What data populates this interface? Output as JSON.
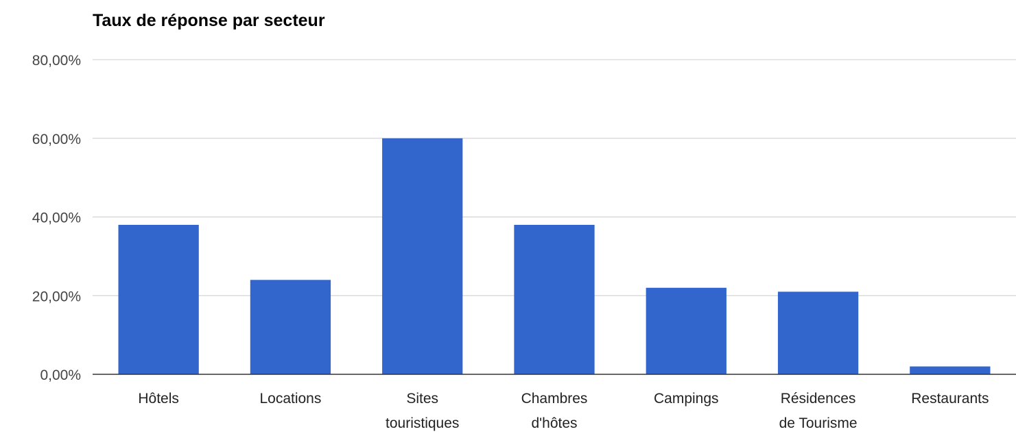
{
  "chart_data": {
    "type": "bar",
    "title": "Taux de réponse par secteur",
    "xlabel": "",
    "ylabel": "",
    "ylim": [
      0,
      80
    ],
    "yticks": [
      0,
      20,
      40,
      60,
      80
    ],
    "ytick_labels": [
      "0,00%",
      "20,00%",
      "40,00%",
      "60,00%",
      "80,00%"
    ],
    "categories": [
      "Hôtels",
      "Locations",
      "Sites touristiques",
      "Chambres d'hôtes",
      "Campings",
      "Résidences de Tourisme",
      "Restaurants"
    ],
    "category_label_lines": [
      [
        "Hôtels"
      ],
      [
        "Locations"
      ],
      [
        "Sites",
        "touristiques"
      ],
      [
        "Chambres",
        "d'hôtes"
      ],
      [
        "Campings"
      ],
      [
        "Résidences",
        "de Tourisme"
      ],
      [
        "Restaurants"
      ]
    ],
    "values": [
      38,
      24,
      60,
      38,
      22,
      21,
      2
    ],
    "bar_color": "#3366cc",
    "grid": true,
    "legend": "none"
  }
}
